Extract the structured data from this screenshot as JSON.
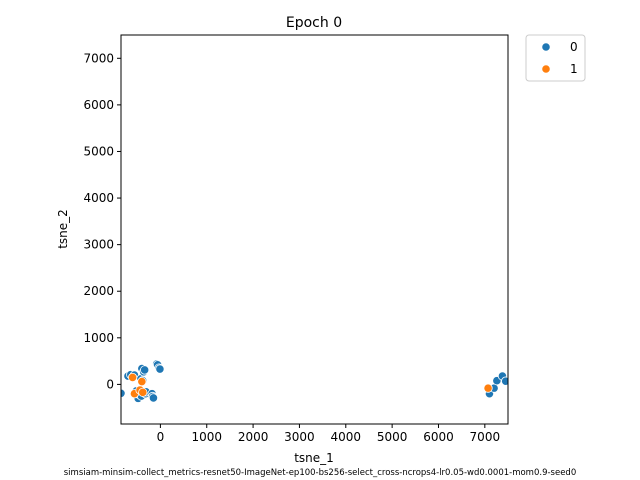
{
  "chart_data": {
    "type": "scatter",
    "title": "Epoch 0",
    "xlabel": "tsne_1",
    "ylabel": "tsne_2",
    "footnote": "simsiam-minsim-collect_metrics-resnet50-ImageNet-ep100-bs256-select_cross-ncrops4-lr0.05-wd0.0001-mom0.9-seed0",
    "xlim": [
      -850,
      7500
    ],
    "ylim": [
      -850,
      7500
    ],
    "x_ticks": [
      0,
      1000,
      2000,
      3000,
      4000,
      5000,
      6000,
      7000
    ],
    "y_ticks": [
      0,
      1000,
      2000,
      3000,
      4000,
      5000,
      6000,
      7000
    ],
    "grid": false,
    "legend_position": "outside-top-right",
    "series": [
      {
        "name": "0",
        "color": "#1f77b4",
        "points": [
          [
            -850,
            -190
          ],
          [
            -700,
            180
          ],
          [
            -640,
            210
          ],
          [
            -560,
            200
          ],
          [
            -520,
            -140
          ],
          [
            -500,
            -270
          ],
          [
            -480,
            -300
          ],
          [
            -450,
            -220
          ],
          [
            -430,
            -180
          ],
          [
            -410,
            -250
          ],
          [
            -420,
            120
          ],
          [
            -380,
            80
          ],
          [
            -400,
            340
          ],
          [
            -360,
            270
          ],
          [
            -340,
            310
          ],
          [
            -320,
            -200
          ],
          [
            -310,
            -160
          ],
          [
            -180,
            -200
          ],
          [
            -170,
            -260
          ],
          [
            -150,
            -290
          ],
          [
            -80,
            440
          ],
          [
            -60,
            420
          ],
          [
            -30,
            350
          ],
          [
            -10,
            330
          ],
          [
            7100,
            -200
          ],
          [
            7200,
            -80
          ],
          [
            7260,
            80
          ],
          [
            7380,
            180
          ],
          [
            7450,
            70
          ]
        ]
      },
      {
        "name": "1",
        "color": "#ff7f0e",
        "points": [
          [
            -600,
            150
          ],
          [
            -560,
            -200
          ],
          [
            -440,
            -120
          ],
          [
            -400,
            60
          ],
          [
            -380,
            -170
          ],
          [
            7070,
            -80
          ]
        ]
      }
    ]
  }
}
